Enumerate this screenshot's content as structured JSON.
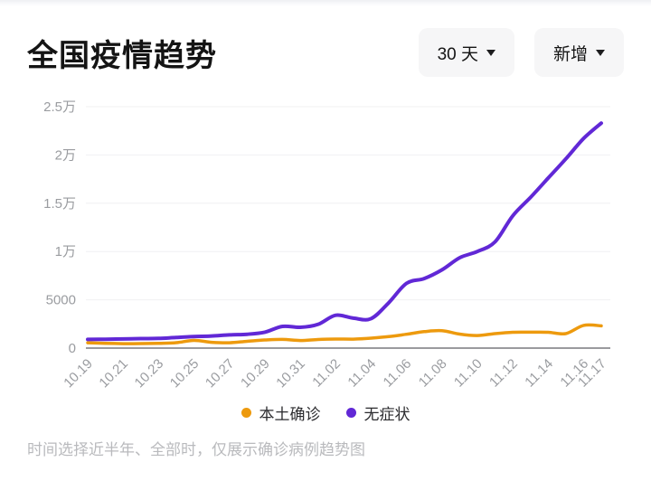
{
  "header": {
    "title": "全国疫情趋势",
    "dropdowns": [
      {
        "label": "30 天"
      },
      {
        "label": "新增"
      }
    ]
  },
  "colors": {
    "local_confirmed": "#ed9a0e",
    "asymptomatic": "#6128d6",
    "axis": "#9a9a9e",
    "grid": "#f0f0f2",
    "tick_text": "#9a9ca0"
  },
  "chart_data": {
    "type": "line",
    "title": "全国疫情趋势",
    "x": [
      "10.19",
      "10.20",
      "10.21",
      "10.22",
      "10.23",
      "10.24",
      "10.25",
      "10.26",
      "10.27",
      "10.28",
      "10.29",
      "10.30",
      "10.31",
      "11.01",
      "11.02",
      "11.03",
      "11.04",
      "11.05",
      "11.06",
      "11.07",
      "11.08",
      "11.09",
      "11.10",
      "11.11",
      "11.12",
      "11.13",
      "11.14",
      "11.15",
      "11.16",
      "11.17"
    ],
    "x_tick_labels": [
      "10.19",
      "10.21",
      "10.23",
      "10.25",
      "10.27",
      "10.29",
      "10.31",
      "11.02",
      "11.04",
      "11.06",
      "11.08",
      "11.10",
      "11.12",
      "11.14",
      "11.16",
      "11.17"
    ],
    "series": [
      {
        "name": "本土确诊",
        "color": "#ed9a0e",
        "values": [
          550,
          500,
          460,
          470,
          500,
          560,
          800,
          600,
          550,
          700,
          840,
          900,
          790,
          890,
          940,
          930,
          1030,
          1190,
          1430,
          1700,
          1800,
          1450,
          1300,
          1500,
          1640,
          1650,
          1640,
          1500,
          2350,
          2300
        ]
      },
      {
        "name": "无症状",
        "color": "#6128d6",
        "values": [
          900,
          920,
          950,
          980,
          1000,
          1100,
          1200,
          1250,
          1370,
          1430,
          1650,
          2250,
          2150,
          2450,
          3400,
          3100,
          3050,
          4700,
          6700,
          7200,
          8100,
          9350,
          10000,
          11000,
          13700,
          15600,
          17600,
          19600,
          21700,
          23300
        ]
      }
    ],
    "ylim": [
      0,
      25000
    ],
    "y_ticks": [
      {
        "v": 0,
        "label": "0"
      },
      {
        "v": 5000,
        "label": "5000"
      },
      {
        "v": 10000,
        "label": "1万"
      },
      {
        "v": 15000,
        "label": "1.5万"
      },
      {
        "v": 20000,
        "label": "2万"
      },
      {
        "v": 25000,
        "label": "2.5万"
      }
    ],
    "grid": true,
    "legend_position": "bottom",
    "smooth": true
  },
  "footnote": "时间选择近半年、全部时，仅展示确诊病例趋势图"
}
